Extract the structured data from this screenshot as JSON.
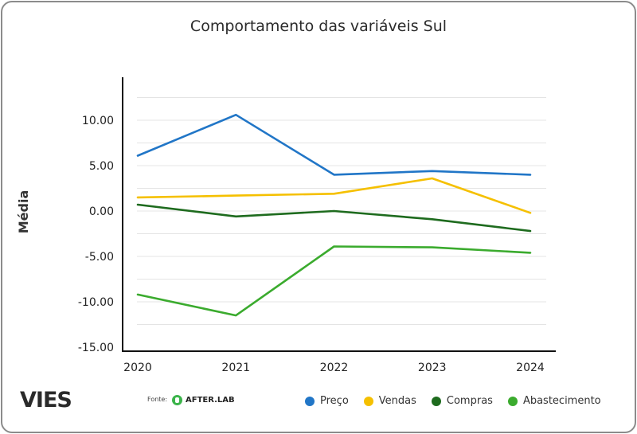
{
  "brand": {
    "logo": "VIES",
    "source_label": "Fonte:",
    "source_name": "AFTER.LAB"
  },
  "chart_data": {
    "type": "line",
    "title": "Comportamento das variáveis Sul",
    "xlabel": "",
    "ylabel": "Média",
    "categories": [
      "2020",
      "2021",
      "2022",
      "2023",
      "2024"
    ],
    "ylim": [
      -15,
      12.5
    ],
    "yticks": [
      10,
      5,
      0,
      -5,
      -10,
      -15
    ],
    "ytick_labels": [
      "10.00",
      "5.00",
      "0.00",
      "-5.00",
      "-10.00",
      "-15.00"
    ],
    "grid": true,
    "legend_position": "bottom-right",
    "series": [
      {
        "name": "Preço",
        "color": "#2176c7",
        "values": [
          6.1,
          10.6,
          4.0,
          4.4,
          4.0
        ]
      },
      {
        "name": "Vendas",
        "color": "#f5c000",
        "values": [
          1.5,
          1.7,
          1.9,
          3.6,
          -0.2
        ]
      },
      {
        "name": "Compras",
        "color": "#1e6b1e",
        "values": [
          0.7,
          -0.6,
          0.0,
          -0.9,
          -2.2
        ]
      },
      {
        "name": "Abastecimento",
        "color": "#3bab2e",
        "values": [
          -9.2,
          -11.5,
          -3.9,
          -4.0,
          -4.6
        ]
      }
    ]
  }
}
